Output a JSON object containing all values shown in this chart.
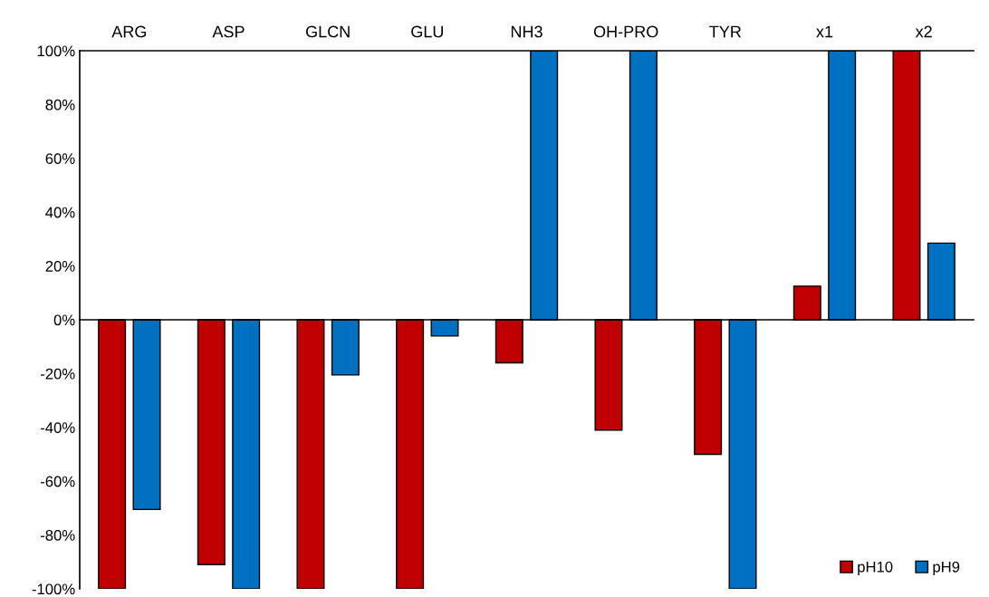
{
  "chart_data": {
    "type": "bar",
    "categories": [
      "ARG",
      "ASP",
      "GLCN",
      "GLU",
      "NH3",
      "OH-PRO",
      "TYR",
      "x1",
      "x2"
    ],
    "series": [
      {
        "name": "pH10",
        "color": "#c00000",
        "values": [
          -100,
          -91,
          -100,
          -100,
          -16,
          -41,
          -50,
          12.5,
          100
        ]
      },
      {
        "name": "pH9",
        "color": "#0070c0",
        "values": [
          -70.5,
          -100,
          -20.5,
          -6,
          100,
          100,
          -100,
          100,
          28.5
        ]
      }
    ],
    "ylim": [
      -100,
      100
    ],
    "yticks": [
      {
        "value": -100,
        "label": "-100%"
      },
      {
        "value": -80,
        "label": "-80%"
      },
      {
        "value": -60,
        "label": "-60%"
      },
      {
        "value": -40,
        "label": "-40%"
      },
      {
        "value": -20,
        "label": "-20%"
      },
      {
        "value": 0,
        "label": "0%"
      },
      {
        "value": 20,
        "label": "20%"
      },
      {
        "value": 40,
        "label": "40%"
      },
      {
        "value": 60,
        "label": "60%"
      },
      {
        "value": 80,
        "label": "80%"
      },
      {
        "value": 100,
        "label": "100%"
      }
    ],
    "legend": "bottom right"
  }
}
